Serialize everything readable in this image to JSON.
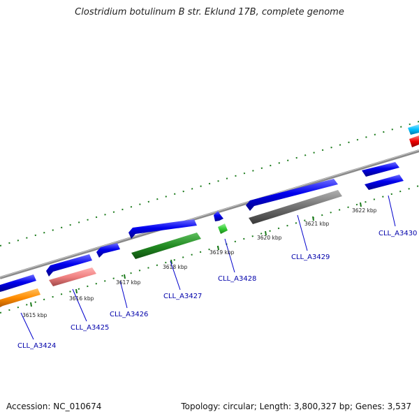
{
  "title": "Clostridium botulinum B str. Eklund 17B, complete genome",
  "footer": {
    "accession": "Accession: NC_010674",
    "summary": "Topology: circular; Length: 3,800,327 bp; Genes: 3,537"
  },
  "scale_labels": [
    "3615 kbp",
    "3616 kbp",
    "3617 kbp",
    "3618 kbp",
    "3619 kbp",
    "3620 kbp",
    "3621 kbp",
    "3622 kbp"
  ],
  "gene_labels": [
    "CLL_A3424",
    "CLL_A3425",
    "CLL_A3426",
    "CLL_A3427",
    "CLL_A3428",
    "CLL_A3429",
    "CLL_A3430"
  ],
  "colors": {
    "cds_blue": "#0000ee",
    "orange": "#ff8c00",
    "salmon": "#f08080",
    "green": "#228b22",
    "light_green": "#33cc33",
    "gray": "#707070",
    "cyan": "#00bfff",
    "red": "#ee0000",
    "backbone": "#8a8a8a",
    "tick": "#1a7a1a",
    "label": "#0000aa"
  }
}
